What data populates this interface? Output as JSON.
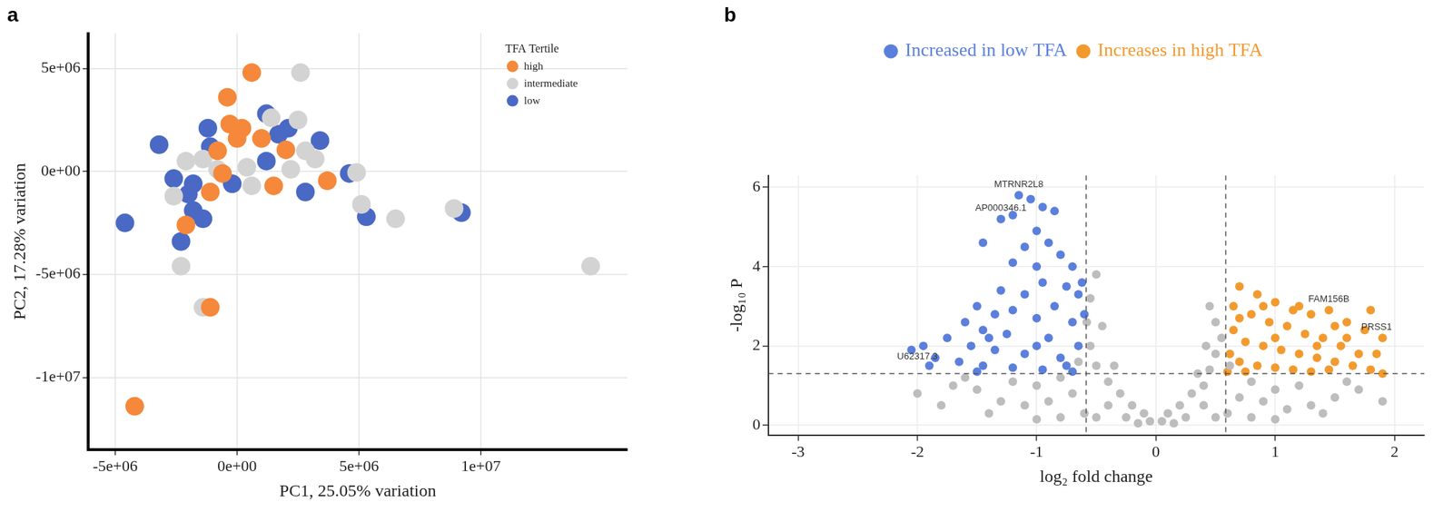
{
  "chart_data": [
    {
      "type": "scatter",
      "title": "a",
      "x_label": "PC1, 25.05% variation",
      "y_label": "PC2, 17.28% variation",
      "legend_title": "TFA Tertile",
      "legend": "topright",
      "grid": true,
      "xlim": [
        -6100000,
        16000000
      ],
      "xticks": [
        {
          "value": -5000000,
          "label": "-5e+06"
        },
        {
          "value": 0,
          "label": "0e+00"
        },
        {
          "value": 5000000,
          "label": "5e+06"
        },
        {
          "value": 10000000,
          "label": "1e+07"
        }
      ],
      "ylim": [
        -13500000,
        6700000
      ],
      "yticks": [
        {
          "value": -10000000,
          "label": "-1e+07"
        },
        {
          "value": -5000000,
          "label": "-5e+06"
        },
        {
          "value": 0,
          "label": "0e+00"
        },
        {
          "value": 5000000,
          "label": "5e+06"
        }
      ],
      "series": [
        {
          "name": "high",
          "color": "#f5883a",
          "x": [
            600000,
            -400000,
            -300000,
            200000,
            0,
            1000000,
            2000000,
            -1100000,
            1500000,
            3700000,
            -2100000,
            -1100000,
            -4200000,
            -800000,
            -600000
          ],
          "y": [
            4800000,
            3600000,
            2300000,
            2100000,
            1600000,
            1600000,
            1050000,
            -1000000,
            -700000,
            -450000,
            -2600000,
            -6600000,
            -11400000,
            1000000,
            -100000
          ]
        },
        {
          "name": "intermediate",
          "color": "#d3d3d3",
          "x": [
            2600000,
            1400000,
            2500000,
            2800000,
            3200000,
            2200000,
            400000,
            -800000,
            -2100000,
            -2600000,
            600000,
            4900000,
            5100000,
            6500000,
            8900000,
            14500000,
            -2300000,
            -1400000,
            -1400000
          ],
          "y": [
            4800000,
            2600000,
            2500000,
            1000000,
            600000,
            100000,
            200000,
            100000,
            500000,
            -1200000,
            -700000,
            -50000,
            -1600000,
            -2300000,
            -1800000,
            -4600000,
            -4600000,
            -6600000,
            600000
          ]
        },
        {
          "name": "low",
          "color": "#4a69c4",
          "x": [
            -3200000,
            -4600000,
            -2600000,
            -1800000,
            -2000000,
            -1200000,
            -1100000,
            -1800000,
            -1400000,
            -2300000,
            1200000,
            1700000,
            2100000,
            3400000,
            1200000,
            2800000,
            4600000,
            5300000,
            9200000,
            -200000
          ],
          "y": [
            1300000,
            -2500000,
            -350000,
            -600000,
            -1100000,
            2100000,
            1200000,
            -1900000,
            -2300000,
            -3400000,
            2800000,
            1800000,
            2100000,
            1500000,
            500000,
            -1000000,
            -100000,
            -2200000,
            -2000000,
            -600000
          ]
        }
      ]
    },
    {
      "type": "scatter",
      "title": "b",
      "x_label": "log₂ fold change",
      "y_label": "-log₁₀ P",
      "legend": "top",
      "grid": true,
      "xlim": [
        -3.25,
        2.25
      ],
      "xticks": [
        -3,
        -2,
        -1,
        0,
        1,
        2
      ],
      "ylim": [
        -0.25,
        6.3
      ],
      "yticks": [
        0,
        2,
        4,
        6
      ],
      "thresholds": {
        "x": [
          -0.585,
          0.585
        ],
        "y": [
          1.301
        ]
      },
      "series": [
        {
          "name": null,
          "color": "#bdbdbd",
          "x": [
            -0.05,
            0.05,
            -0.1,
            0.1,
            -0.2,
            0.2,
            -0.3,
            0.3,
            -0.4,
            0.4,
            -0.5,
            0.45,
            -0.55,
            0.5,
            -0.58,
            0.55,
            -0.55,
            0.5,
            -0.5,
            0.45,
            -0.35,
            0.35,
            -0.45,
            0.42,
            -0.7,
            0.7,
            -0.9,
            0.9,
            -1.1,
            1.1,
            -1.3,
            1.3,
            -1.5,
            1.5,
            -1.7,
            1.7,
            -0.8,
            0.8,
            -1.0,
            1.0,
            -1.2,
            1.2,
            -0.6,
            0.6,
            -0.8,
            0.8,
            -1.0,
            1.0,
            -1.4,
            1.4,
            -1.8,
            1.9,
            -0.25,
            0.25,
            -0.15,
            0.15,
            -0.4,
            0.4,
            -0.65,
            0.62,
            -1.6,
            1.6,
            -2.0,
            -0.5,
            0.5
          ],
          "y": [
            0.1,
            0.1,
            0.3,
            0.3,
            0.5,
            0.5,
            0.8,
            0.8,
            1.1,
            1.0,
            1.5,
            1.4,
            2.0,
            1.8,
            2.6,
            2.2,
            3.2,
            2.6,
            3.8,
            3.0,
            1.5,
            1.3,
            2.5,
            2.0,
            0.8,
            0.7,
            0.6,
            0.6,
            0.5,
            0.4,
            0.6,
            0.5,
            0.9,
            0.7,
            1.0,
            0.9,
            1.2,
            1.1,
            1.0,
            0.9,
            1.1,
            1.0,
            0.3,
            0.3,
            0.2,
            0.2,
            0.15,
            0.15,
            0.3,
            0.3,
            0.5,
            0.6,
            0.2,
            0.2,
            0.05,
            0.05,
            0.5,
            0.5,
            1.6,
            1.5,
            1.2,
            1.1,
            0.8,
            0.2,
            0.2
          ]
        },
        {
          "name": "Increased in low TFA",
          "color": "#5b7fdc",
          "x": [
            -1.15,
            -1.05,
            -0.95,
            -0.85,
            -1.3,
            -1.2,
            -1.0,
            -1.45,
            -1.1,
            -0.9,
            -0.8,
            -0.7,
            -1.2,
            -1.0,
            -0.95,
            -0.75,
            -0.65,
            -1.3,
            -1.1,
            -0.85,
            -1.5,
            -1.35,
            -1.2,
            -1.0,
            -0.7,
            -1.6,
            -1.45,
            -1.25,
            -0.9,
            -0.65,
            -1.75,
            -1.55,
            -1.35,
            -1.1,
            -0.8,
            -1.95,
            -2.05,
            -1.85,
            -1.65,
            -1.45,
            -1.2,
            -0.95,
            -0.7,
            -1.9,
            -1.5,
            -0.6,
            -0.62,
            -1.0,
            -1.4,
            -0.75
          ],
          "y": [
            5.8,
            5.7,
            5.5,
            5.4,
            5.2,
            5.3,
            4.9,
            4.6,
            4.5,
            4.6,
            4.3,
            4.0,
            4.1,
            4.0,
            3.6,
            3.5,
            3.3,
            3.4,
            3.3,
            3.0,
            3.0,
            2.8,
            2.9,
            2.7,
            2.6,
            2.6,
            2.4,
            2.3,
            2.2,
            2.0,
            2.2,
            2.0,
            1.9,
            1.8,
            1.7,
            2.0,
            1.9,
            1.7,
            1.6,
            1.5,
            1.45,
            1.4,
            1.35,
            1.5,
            1.35,
            2.8,
            3.6,
            2.0,
            2.2,
            1.5
          ]
        },
        {
          "name": "Increases in high TFA",
          "color": "#f39a2e",
          "x": [
            0.7,
            0.85,
            1.0,
            1.15,
            1.3,
            1.45,
            1.6,
            1.8,
            1.9,
            1.85,
            0.65,
            0.8,
            0.95,
            1.1,
            1.25,
            1.4,
            1.55,
            1.7,
            0.65,
            0.75,
            0.9,
            1.05,
            1.2,
            1.35,
            1.5,
            1.65,
            1.8,
            0.62,
            0.7,
            0.85,
            1.0,
            1.15,
            1.3,
            1.45,
            0.6,
            0.75,
            1.9,
            0.9,
            1.2,
            1.5,
            1.0,
            0.7,
            1.35,
            1.6,
            1.75
          ],
          "y": [
            3.5,
            3.3,
            3.1,
            2.9,
            2.8,
            2.9,
            2.6,
            2.9,
            2.2,
            1.8,
            3.0,
            2.8,
            2.6,
            2.5,
            2.3,
            2.2,
            2.0,
            1.8,
            2.4,
            2.1,
            2.0,
            1.9,
            1.8,
            1.7,
            1.6,
            1.5,
            1.4,
            1.8,
            1.6,
            1.5,
            1.45,
            1.4,
            1.35,
            1.4,
            1.35,
            1.35,
            1.3,
            3.0,
            3.0,
            2.5,
            2.2,
            2.7,
            2.0,
            2.2,
            2.4
          ]
        }
      ],
      "annotations": [
        {
          "text": "MTRNR2L8",
          "x": -1.15,
          "y": 5.85
        },
        {
          "text": "AP000346.1",
          "x": -1.3,
          "y": 5.25
        },
        {
          "text": "FAM156B",
          "x": 1.45,
          "y": 2.95
        },
        {
          "text": "PRSS1",
          "x": 1.85,
          "y": 2.25
        },
        {
          "text": "U62317.3",
          "x": -2.0,
          "y": 1.5
        }
      ]
    }
  ]
}
